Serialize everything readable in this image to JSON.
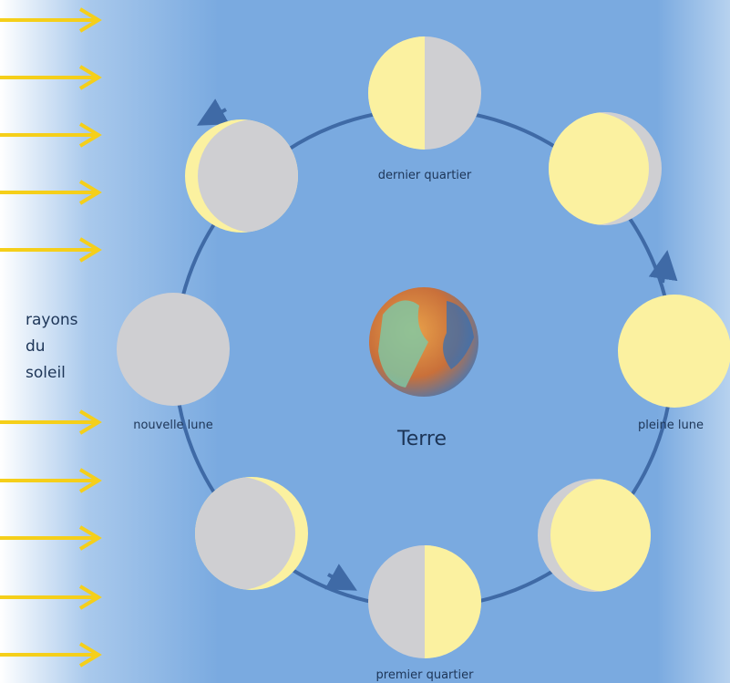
{
  "sun_label": {
    "lines": [
      "rayons",
      "du",
      "soleil"
    ]
  },
  "earth": {
    "label": "Terre"
  },
  "phases": [
    {
      "label": "dernier quartier"
    },
    {
      "label": "pleine lune"
    },
    {
      "label": "premier quartier"
    },
    {
      "label": "nouvelle lune"
    }
  ]
}
